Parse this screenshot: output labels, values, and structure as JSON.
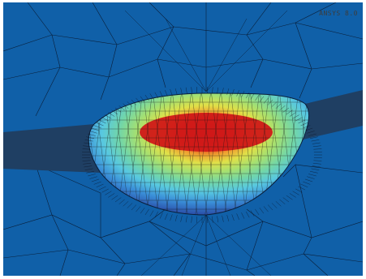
{
  "watermark": "ANSYS 8.0",
  "colors": {
    "background": "#1060a8",
    "mesh_line": "#0a1f3a",
    "bar": "#1f3f63",
    "contour": [
      "#2a4ea8",
      "#3a8fd8",
      "#58c8e0",
      "#72d6a8",
      "#a6e070",
      "#e0e048",
      "#f0a030",
      "#e04020",
      "#d01818"
    ]
  }
}
